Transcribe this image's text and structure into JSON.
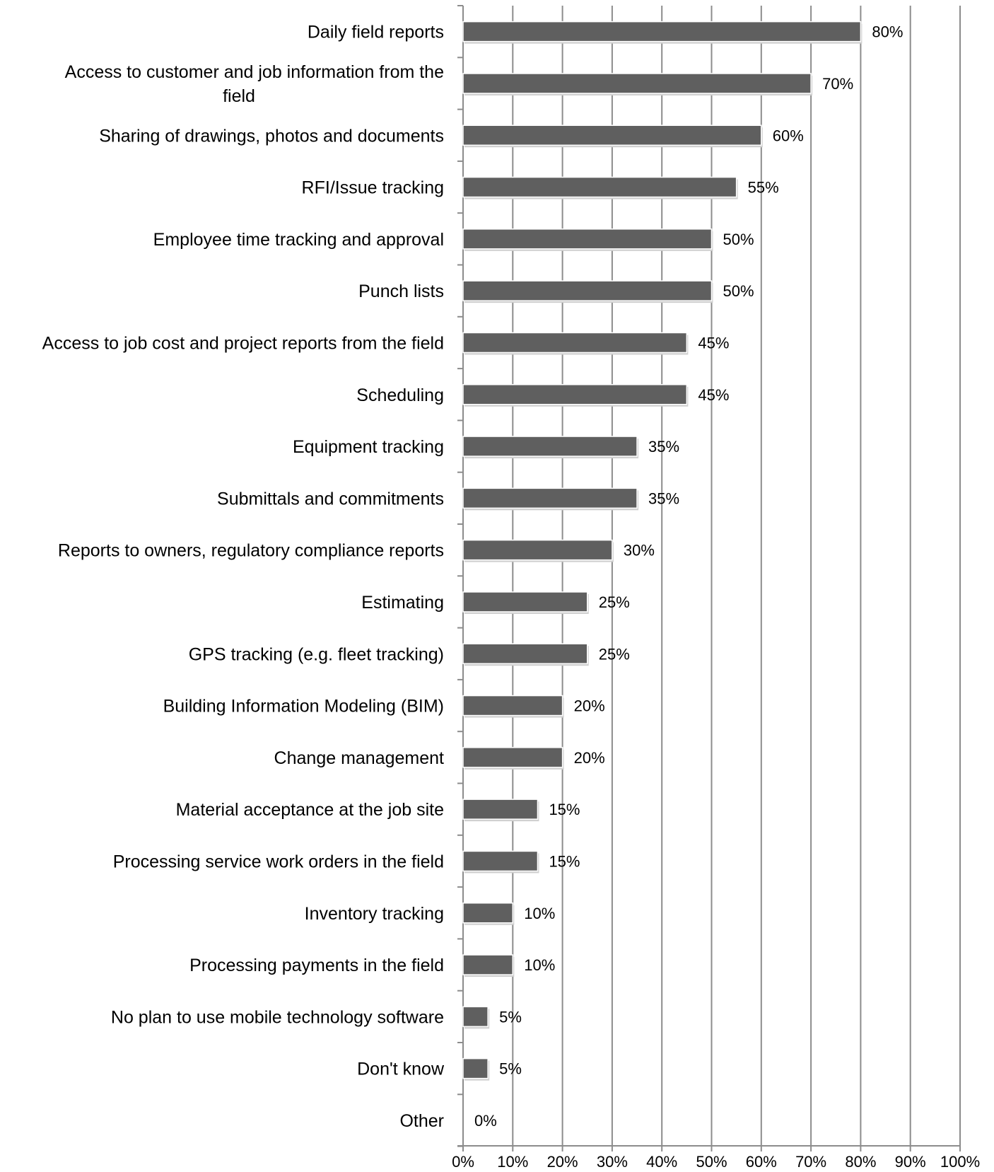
{
  "chart_data": {
    "type": "bar",
    "orientation": "horizontal",
    "title": "",
    "xlabel": "",
    "ylabel": "",
    "xlim": [
      0,
      100
    ],
    "x_ticks": [
      "0%",
      "10%",
      "20%",
      "30%",
      "40%",
      "50%",
      "60%",
      "70%",
      "80%",
      "90%",
      "100%"
    ],
    "grid": true,
    "legend": "none",
    "bar_color": "#5f5f5f",
    "categories": [
      "Daily field reports",
      "Access to customer and job information from the field",
      "Sharing of drawings, photos and documents",
      "RFI/Issue tracking",
      "Employee time tracking and approval",
      "Punch lists",
      "Access to job cost and project reports from the field",
      "Scheduling",
      "Equipment tracking",
      "Submittals and commitments",
      "Reports to owners, regulatory compliance reports",
      "Estimating",
      "GPS tracking (e.g. fleet tracking)",
      "Building Information Modeling (BIM)",
      "Change management",
      "Material acceptance at the job site",
      "Processing service work orders in the field",
      "Inventory tracking",
      "Processing payments in the field",
      "No plan to use mobile technology software",
      "Don't know",
      "Other"
    ],
    "category_lines": [
      [
        "Daily field reports"
      ],
      [
        "Access to customer and job information from the",
        "field"
      ],
      [
        "Sharing of drawings, photos and documents"
      ],
      [
        "RFI/Issue tracking"
      ],
      [
        "Employee time tracking and approval"
      ],
      [
        "Punch lists"
      ],
      [
        "Access to job cost and project reports from the field"
      ],
      [
        "Scheduling"
      ],
      [
        "Equipment tracking"
      ],
      [
        "Submittals and commitments"
      ],
      [
        "Reports to owners, regulatory compliance reports"
      ],
      [
        "Estimating"
      ],
      [
        "GPS tracking (e.g. fleet tracking)"
      ],
      [
        "Building Information Modeling (BIM)"
      ],
      [
        "Change management"
      ],
      [
        "Material acceptance at the job site"
      ],
      [
        "Processing service work orders in the field"
      ],
      [
        "Inventory tracking"
      ],
      [
        "Processing payments in the field"
      ],
      [
        "No plan to use mobile technology software"
      ],
      [
        "Don't know"
      ],
      [
        "Other"
      ]
    ],
    "values": [
      80,
      70,
      60,
      55,
      50,
      50,
      45,
      45,
      35,
      35,
      30,
      25,
      25,
      20,
      20,
      15,
      15,
      10,
      10,
      5,
      5,
      0
    ],
    "data_labels": [
      "80%",
      "70%",
      "60%",
      "55%",
      "50%",
      "50%",
      "45%",
      "45%",
      "35%",
      "35%",
      "30%",
      "25%",
      "25%",
      "20%",
      "20%",
      "15%",
      "15%",
      "10%",
      "10%",
      "5%",
      "5%",
      "0%"
    ]
  }
}
